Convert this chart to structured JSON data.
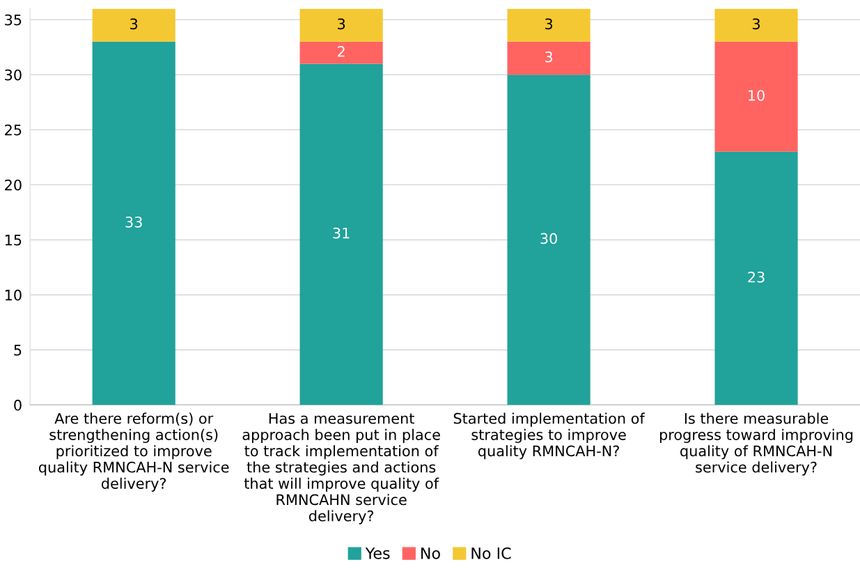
{
  "chart_data": {
    "type": "bar",
    "stacked": true,
    "categories": [
      "Are there reform(s) or\nstrengthening action(s)\nprioritized to improve\nquality RMNCAH-N service\ndelivery?",
      "Has a measurement\napproach been put in place\nto track implementation of\nthe strategies and actions\nthat will improve quality of\nRMNCAHN service\ndelivery?",
      "Started implementation of\nstrategies to improve\nquality RMNCAH-N?",
      "Is there measurable\nprogress toward improving\nquality of RMNCAH-N\nservice delivery?"
    ],
    "series": [
      {
        "name": "Yes",
        "color": "#21a29a",
        "values": [
          33,
          31,
          30,
          23
        ],
        "value_labels": [
          "33",
          "31",
          "30",
          "23"
        ]
      },
      {
        "name": "No",
        "color": "#ff6461",
        "values": [
          0,
          2,
          3,
          10
        ],
        "value_labels": [
          null,
          "2",
          "3",
          "10"
        ]
      },
      {
        "name": "No IC",
        "color": "#f4c832",
        "values": [
          3,
          3,
          3,
          3
        ],
        "value_labels": [
          "3",
          "3",
          "3",
          "3"
        ]
      }
    ],
    "ylim": [
      0,
      36
    ],
    "yticks": [
      0,
      5,
      10,
      15,
      20,
      25,
      30,
      35
    ],
    "grid": "y",
    "legend": "bottom"
  }
}
